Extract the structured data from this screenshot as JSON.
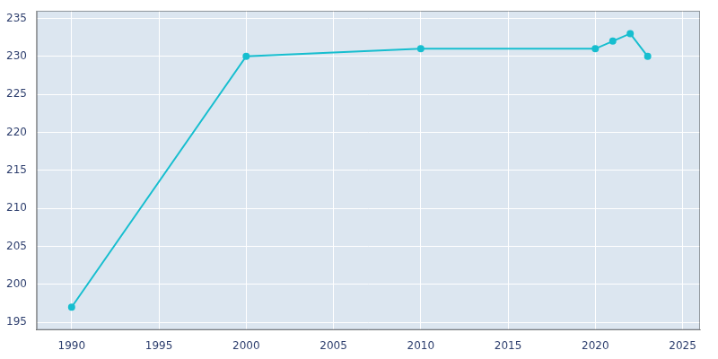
{
  "chart_data": {
    "type": "line",
    "x": [
      1990,
      2000,
      2010,
      2020,
      2021,
      2022,
      2023
    ],
    "values": [
      197,
      230,
      231,
      231,
      232,
      233,
      230
    ],
    "color": "#17BECF",
    "marker": "circle",
    "xlim": [
      1988,
      2026
    ],
    "xticks": [
      1990,
      1995,
      2000,
      2005,
      2010,
      2015,
      2020,
      2025
    ],
    "ylim": [
      194,
      236
    ],
    "yticks": [
      195,
      200,
      205,
      210,
      215,
      220,
      225,
      230,
      235
    ],
    "grid": true
  }
}
